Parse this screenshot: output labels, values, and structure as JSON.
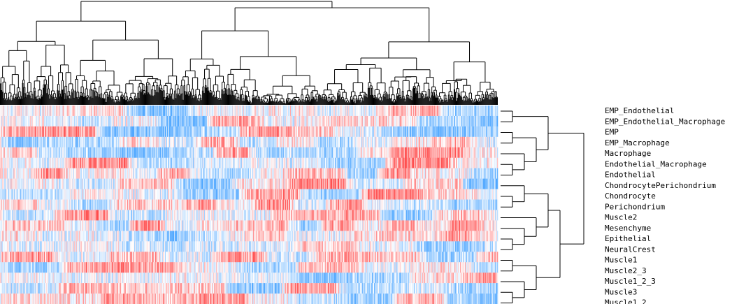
{
  "chart_data": {
    "type": "heatmap",
    "title": "",
    "rows": [
      "EMP_Endothelial",
      "EMP_Endothelial_Macrophage",
      "EMP",
      "EMP_Macrophage",
      "Macrophage",
      "Endothelial_Macrophage",
      "Endothelial",
      "ChondrocytePerichondrium",
      "Chondrocyte",
      "Perichondrium",
      "Muscle2",
      "Mesenchyme",
      "Epithelial",
      "NeuralCrest",
      "Muscle1",
      "Muscle2_3",
      "Muscle1_2_3",
      "Muscle3",
      "Muscle1_2"
    ],
    "column_count": 700,
    "row_labels_position": "right",
    "row_dendrogram_position": "right",
    "column_dendrogram_position": "top",
    "color_scale": {
      "low": "#4da6ff",
      "mid": "#ffffff",
      "high": "#ff4d4d",
      "range": [
        -1,
        1
      ]
    },
    "row_tree": [
      [
        [
          [
            "EMP_Endothelial",
            "EMP_Endothelial_Macrophage"
          ],
          [
            [
              "EMP",
              "EMP_Macrophage"
            ],
            [
              "Macrophage",
              [
                "Endothelial_Macrophage",
                "Endothelial"
              ]
            ]
          ]
        ]
      ],
      [
        [
          [
            [
              "ChondrocytePerichondrium",
              [
                "Chondrocyte",
                "Perichondrium"
              ]
            ],
            [
              "Muscle2",
              [
                "Mesenchyme",
                [
                  "Epithelial",
                  "NeuralCrest"
                ]
              ]
            ]
          ],
          [
            [
              "Muscle1",
              "Muscle2_3"
            ],
            [
              "Muscle1_2_3",
              [
                "Muscle3",
                "Muscle1_2"
              ]
            ]
          ]
        ]
      ]
    ],
    "grid": false
  }
}
